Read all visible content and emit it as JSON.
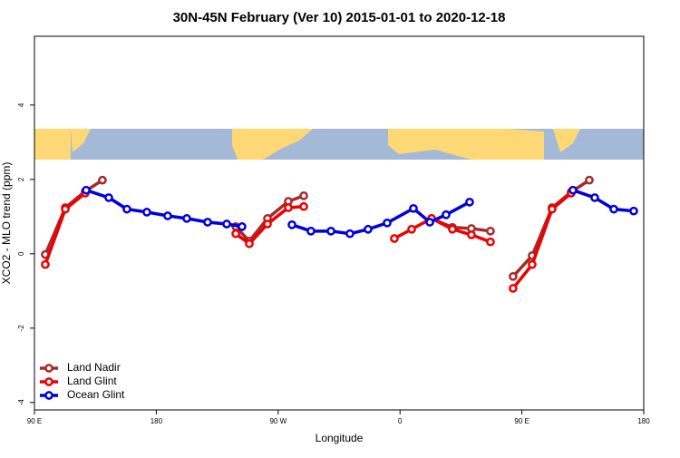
{
  "chart_data": {
    "type": "line",
    "title": "30N-45N February (Ver 10)   2015-01-01 to 2020-12-18",
    "x_label": "Longitude",
    "y_label": "XCO2 - MLO trend (ppm)",
    "xlim": [
      90,
      540
    ],
    "xticks": [
      {
        "value": 90,
        "label": "90 E"
      },
      {
        "value": 180,
        "label": "180"
      },
      {
        "value": 270,
        "label": "90 W"
      },
      {
        "value": 360,
        "label": "0"
      },
      {
        "value": 450,
        "label": "90 E"
      },
      {
        "value": 540,
        "label": "180"
      }
    ],
    "ylim": [
      -4.2,
      5.85
    ],
    "yticks": [
      -4,
      -2,
      0,
      2,
      4
    ],
    "legend": "bottom-left",
    "series": [
      {
        "name": "Land Nadir",
        "color": "#a52a2a",
        "x": [
          98.0,
          112.8,
          127.5,
          140.2,
          null,
          238.7,
          248.7,
          262.1,
          277.5,
          288.9,
          null,
          383.3,
          398.7,
          412.7,
          426.8,
          null,
          443.5,
          457.6,
          472.3,
          486.4,
          499.8
        ],
        "values": [
          -0.02,
          1.24,
          1.68,
          1.98,
          null,
          0.73,
          0.34,
          0.95,
          1.41,
          1.56,
          null,
          0.95,
          0.71,
          0.68,
          0.61,
          null,
          -0.61,
          -0.05,
          1.24,
          1.66,
          1.98
        ]
      },
      {
        "name": "Land Glint",
        "color": "#ee0000",
        "x": [
          98.0,
          112.8,
          127.5,
          null,
          238.7,
          248.7,
          262.1,
          277.5,
          288.9,
          null,
          355.8,
          368.6,
          383.3,
          398.7,
          412.7,
          426.8,
          null,
          443.5,
          457.6,
          472.3,
          486.4
        ],
        "values": [
          -0.29,
          1.2,
          1.63,
          null,
          0.54,
          0.27,
          0.8,
          1.24,
          1.27,
          null,
          0.41,
          0.66,
          0.95,
          0.66,
          0.51,
          0.32,
          null,
          -0.93,
          -0.29,
          1.2,
          1.63
        ]
      },
      {
        "name": "Ocean Glint",
        "color": "#0000dd",
        "x": [
          128.2,
          144.9,
          158.3,
          173.0,
          188.4,
          202.5,
          217.9,
          232.0,
          243.3,
          null,
          280.2,
          294.2,
          309.0,
          323.0,
          336.4,
          350.5,
          369.9,
          382.0,
          394.0,
          411.4,
          null,
          487.7,
          503.8,
          517.9,
          532.6
        ],
        "values": [
          1.71,
          1.51,
          1.2,
          1.12,
          1.02,
          0.95,
          0.85,
          0.8,
          0.73,
          null,
          0.78,
          0.61,
          0.61,
          0.54,
          0.66,
          0.83,
          1.22,
          0.85,
          1.05,
          1.39,
          null,
          1.71,
          1.51,
          1.2,
          1.15
        ]
      }
    ]
  }
}
